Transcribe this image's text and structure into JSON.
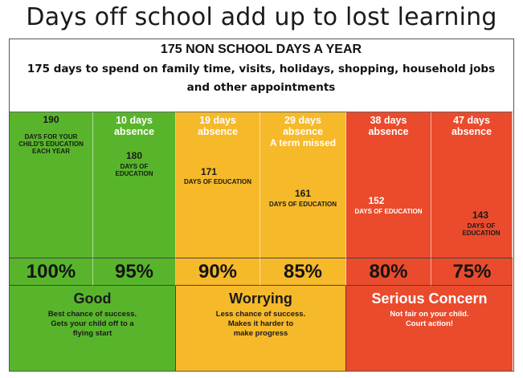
{
  "title": "Days off school add up to lost learning",
  "header": {
    "title": "175 NON SCHOOL DAYS A YEAR",
    "subtitle": "175 days to spend on family time, visits, holidays, shopping, household jobs and other appointments"
  },
  "columns": [
    {
      "top": "190",
      "top_detail": "DAYS FOR YOUR CHILD'S EDUCATION EACH YEAR",
      "days": "",
      "days_label": "",
      "percent": "100%"
    },
    {
      "top": "10 days absence",
      "top_detail": "",
      "days": "180",
      "days_label": "DAYS OF EDUCATION",
      "percent": "95%"
    },
    {
      "top": "19 days absence",
      "top_detail": "",
      "days": "171",
      "days_label": "DAYS OF EDUCATION",
      "percent": "90%"
    },
    {
      "top": "29 days absence",
      "top_detail": "A term missed",
      "days": "161",
      "days_label": "DAYS OF EDUCATION",
      "percent": "85%"
    },
    {
      "top": "38 days absence",
      "top_detail": "",
      "days": "152",
      "days_label": "DAYS OF EDUCATION",
      "percent": "80%"
    },
    {
      "top": "47 days absence",
      "top_detail": "",
      "days": "143",
      "days_label": "DAYS OF EDUCATION",
      "percent": "75%"
    }
  ],
  "bands": [
    {
      "title": "Good",
      "lines": [
        "Best chance of success.",
        "Gets your child off to a",
        "flying start"
      ],
      "color": "#58b52b"
    },
    {
      "title": "Worrying",
      "lines": [
        "Less chance of success.",
        "Makes it harder to",
        "make progress"
      ],
      "color": "#f6b92a"
    },
    {
      "title": "Serious Concern",
      "lines": [
        "Not fair on your child.",
        "Court action!"
      ],
      "color": "#ea4b2c"
    }
  ]
}
